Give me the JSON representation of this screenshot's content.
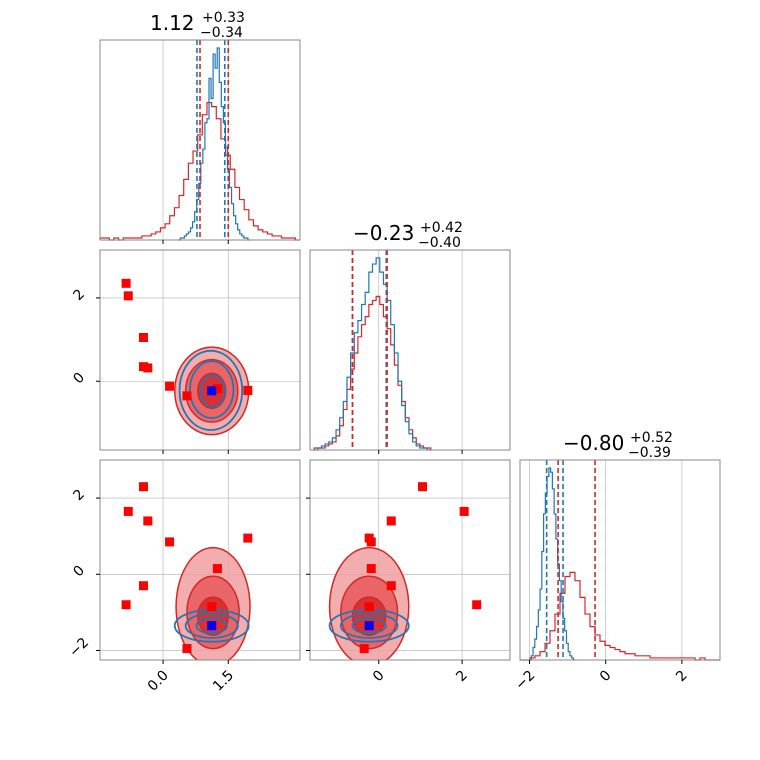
{
  "colors": {
    "blue": "#1f77b4",
    "red": "#d62728",
    "red_fill_light": "#f0a0a0",
    "red_fill_dark": "#d62728",
    "grid": "#b0b0b0",
    "marker_red": "#ff0000",
    "marker_blue": "#0000ff"
  },
  "chart_data": {
    "type": "corner",
    "parameters": 3,
    "titles": [
      {
        "value": "1.12",
        "plus": "+0.33",
        "minus": "−0.34"
      },
      {
        "value": "−0.23",
        "plus": "+0.42",
        "minus": "−0.40"
      },
      {
        "value": "−0.80",
        "plus": "+0.52",
        "minus": "−0.39"
      }
    ],
    "ranges": [
      [
        -1.45,
        3.15
      ],
      [
        -1.65,
        3.15
      ],
      [
        -2.25,
        3.0
      ]
    ],
    "ticks": {
      "x0": {
        "values": [
          0.0,
          1.5
        ],
        "labels": [
          "0.0",
          "1.5"
        ]
      },
      "x1": {
        "values": [
          0,
          2
        ],
        "labels": [
          "0",
          "2"
        ]
      },
      "x2": {
        "values": [
          -2,
          0,
          2
        ],
        "labels": [
          "−2",
          "0",
          "2"
        ]
      },
      "y1": {
        "values": [
          0,
          2
        ],
        "labels": [
          "0",
          "2"
        ]
      },
      "y2": {
        "values": [
          -2,
          0,
          2
        ],
        "labels": [
          "−2",
          "0",
          "2"
        ]
      }
    },
    "grid": true,
    "diag_quantile_lines": {
      "blue": [
        [
          0.78,
          1.42
        ],
        [
          -0.63,
          0.18
        ],
        [
          -1.55,
          -1.12
        ]
      ],
      "red": [
        [
          0.85,
          1.5
        ],
        [
          -0.63,
          0.2
        ],
        [
          -1.25,
          -0.28
        ]
      ]
    },
    "histograms": {
      "p0_blue": {
        "edges": [
          0.35,
          2.0
        ],
        "counts": [
          0,
          1,
          1,
          2,
          3,
          4,
          6,
          9,
          14,
          20,
          28,
          38,
          45,
          58,
          60,
          80,
          70,
          92,
          85,
          95,
          78,
          66,
          58,
          46,
          35,
          26,
          18,
          12,
          8,
          5,
          3,
          2,
          1,
          1,
          0
        ]
      },
      "p0_red": {
        "edges": [
          -1.45,
          3.15
        ],
        "counts": [
          1,
          1,
          0,
          1,
          0,
          1,
          1,
          1,
          1,
          2,
          2,
          3,
          4,
          6,
          8,
          12,
          16,
          22,
          30,
          38,
          44,
          52,
          62,
          68,
          66,
          60,
          50,
          42,
          35,
          26,
          20,
          15,
          10,
          7,
          5,
          4,
          3,
          2,
          2,
          1,
          1,
          1,
          0
        ]
      },
      "p1_blue": {
        "edges": [
          -1.55,
          1.25
        ],
        "counts": [
          0,
          1,
          2,
          3,
          4,
          6,
          10,
          16,
          24,
          36,
          48,
          58,
          64,
          72,
          78,
          88,
          92,
          95,
          88,
          82,
          74,
          62,
          48,
          34,
          22,
          14,
          8,
          4,
          2,
          1,
          1,
          0
        ]
      },
      "p1_red": {
        "edges": [
          -1.55,
          1.25
        ],
        "counts": [
          1,
          1,
          1,
          2,
          3,
          4,
          7,
          12,
          20,
          30,
          40,
          48,
          56,
          62,
          66,
          72,
          74,
          76,
          72,
          66,
          60,
          52,
          42,
          32,
          24,
          16,
          10,
          6,
          3,
          2,
          1,
          1
        ]
      },
      "p2_blue": {
        "edges": [
          -2.0,
          -0.8
        ],
        "counts": [
          0,
          2,
          6,
          10,
          16,
          24,
          34,
          52,
          70,
          80,
          88,
          92,
          90,
          82,
          70,
          58,
          46,
          38,
          28,
          20,
          14,
          8,
          4,
          2,
          1,
          0
        ]
      },
      "p2_red": {
        "edges": [
          -2.25,
          3.0
        ],
        "counts": [
          0,
          0,
          1,
          2,
          4,
          8,
          14,
          22,
          32,
          40,
          42,
          38,
          30,
          22,
          16,
          12,
          9,
          7,
          6,
          5,
          4,
          3,
          3,
          2,
          2,
          2,
          1,
          1,
          1,
          1,
          1,
          1,
          1,
          1,
          1,
          0,
          1,
          0,
          0,
          0
        ]
      }
    },
    "markers": {
      "p01_red": [
        [
          -0.85,
          2.35
        ],
        [
          -0.8,
          2.05
        ],
        [
          -0.45,
          1.05
        ],
        [
          -0.45,
          0.35
        ],
        [
          -0.35,
          0.32
        ],
        [
          0.15,
          -0.12
        ],
        [
          0.55,
          -0.35
        ],
        [
          1.25,
          -0.18
        ],
        [
          1.95,
          -0.22
        ]
      ],
      "p01_blue": [
        [
          1.12,
          -0.23
        ]
      ],
      "p02_red": [
        [
          -0.85,
          -0.8
        ],
        [
          -0.8,
          1.65
        ],
        [
          -0.45,
          2.3
        ],
        [
          -0.45,
          -0.3
        ],
        [
          -0.35,
          1.4
        ],
        [
          0.15,
          0.85
        ],
        [
          0.55,
          -1.95
        ],
        [
          1.12,
          -0.85
        ],
        [
          1.25,
          0.15
        ],
        [
          1.95,
          0.95
        ]
      ],
      "p02_blue": [
        [
          1.12,
          -1.35
        ]
      ],
      "p12_red": [
        [
          -0.35,
          -1.95
        ],
        [
          -0.23,
          0.95
        ],
        [
          -0.18,
          0.85
        ],
        [
          -0.23,
          -0.85
        ],
        [
          -0.18,
          0.15
        ],
        [
          0.3,
          -0.3
        ],
        [
          0.3,
          1.4
        ],
        [
          1.05,
          2.3
        ],
        [
          2.05,
          1.65
        ],
        [
          2.35,
          -0.8
        ]
      ],
      "p12_blue": [
        [
          -0.23,
          -1.35
        ]
      ]
    },
    "contours": {
      "p01": {
        "red_fill": [
          {
            "cx": 1.12,
            "cy": -0.23,
            "rx": 0.85,
            "ry": 1.05,
            "level": "outer"
          },
          {
            "cx": 1.12,
            "cy": -0.23,
            "rx": 0.6,
            "ry": 0.75,
            "level": "mid"
          },
          {
            "cx": 1.12,
            "cy": -0.23,
            "rx": 0.32,
            "ry": 0.42,
            "level": "inner"
          }
        ],
        "blue_line": [
          {
            "cx": 1.1,
            "cy": -0.22,
            "rx": 0.72,
            "ry": 0.95
          },
          {
            "cx": 1.12,
            "cy": -0.2,
            "rx": 0.5,
            "ry": 0.68
          },
          {
            "cx": 1.14,
            "cy": -0.24,
            "rx": 0.28,
            "ry": 0.38
          }
        ]
      },
      "p02": {
        "red_fill": [
          {
            "cx": 1.15,
            "cy": -0.85,
            "rx": 0.85,
            "ry": 1.55,
            "level": "outer"
          },
          {
            "cx": 1.15,
            "cy": -1.0,
            "rx": 0.6,
            "ry": 0.95,
            "level": "mid"
          },
          {
            "cx": 1.15,
            "cy": -1.1,
            "rx": 0.35,
            "ry": 0.5,
            "level": "inner"
          }
        ],
        "blue_line": [
          {
            "cx": 1.12,
            "cy": -1.35,
            "rx": 0.85,
            "ry": 0.42
          },
          {
            "cx": 1.12,
            "cy": -1.35,
            "rx": 0.6,
            "ry": 0.32
          },
          {
            "cx": 1.12,
            "cy": -1.35,
            "rx": 0.35,
            "ry": 0.2
          }
        ]
      },
      "p12": {
        "red_fill": [
          {
            "cx": -0.23,
            "cy": -0.85,
            "rx": 0.95,
            "ry": 1.55,
            "level": "outer"
          },
          {
            "cx": -0.23,
            "cy": -1.0,
            "rx": 0.68,
            "ry": 0.95,
            "level": "mid"
          },
          {
            "cx": -0.23,
            "cy": -1.1,
            "rx": 0.4,
            "ry": 0.5,
            "level": "inner"
          }
        ],
        "blue_line": [
          {
            "cx": -0.23,
            "cy": -1.35,
            "rx": 0.95,
            "ry": 0.42
          },
          {
            "cx": -0.23,
            "cy": -1.35,
            "rx": 0.68,
            "ry": 0.32
          },
          {
            "cx": -0.23,
            "cy": -1.35,
            "rx": 0.4,
            "ry": 0.2
          }
        ]
      }
    }
  }
}
